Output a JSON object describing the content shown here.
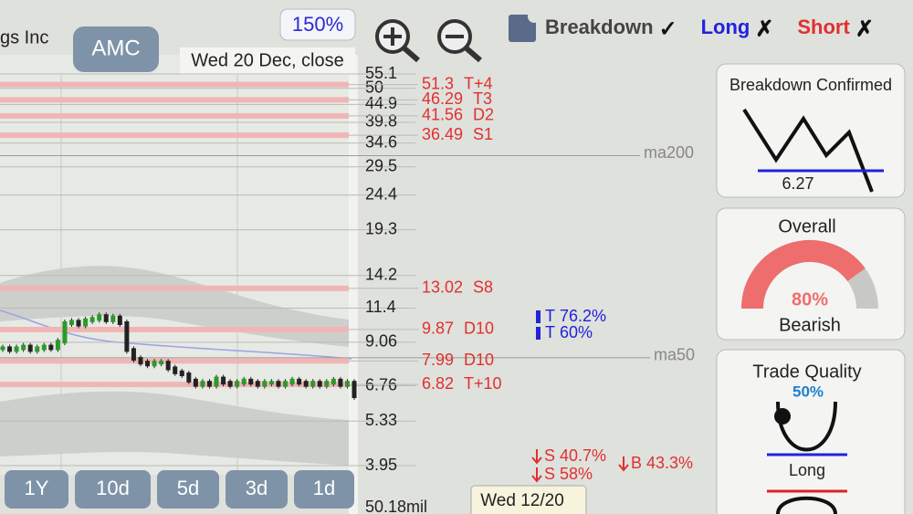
{
  "header": {
    "company": "gs Inc",
    "ticker": "AMC",
    "zoom": "150%",
    "date": "Wed 20 Dec, close"
  },
  "toggles": [
    {
      "label": "Breakdown",
      "state": "✓"
    },
    {
      "label": "Long",
      "state": "✗"
    },
    {
      "label": "Short",
      "state": "✗"
    }
  ],
  "price_axis": {
    "scale": "log",
    "ticks": [
      55.1,
      50,
      44.9,
      39.8,
      34.6,
      29.5,
      24.4,
      19.3,
      14.2,
      11.4,
      9.06,
      6.76,
      5.33,
      3.95
    ],
    "volume_label": "50.18mil"
  },
  "levels": [
    {
      "value": 51.3,
      "tag": "T+4"
    },
    {
      "value": 46.29,
      "tag": "T3"
    },
    {
      "value": 41.56,
      "tag": "D2"
    },
    {
      "value": 36.49,
      "tag": "S1"
    },
    {
      "value": 13.02,
      "tag": "S8"
    },
    {
      "value": 9.87,
      "tag": "D10"
    },
    {
      "value": 7.99,
      "tag": "D10"
    },
    {
      "value": 6.82,
      "tag": "T+10"
    }
  ],
  "moving_averages": [
    {
      "label": "ma200",
      "value": 31.8
    },
    {
      "label": "ma50",
      "value": 8.16
    }
  ],
  "candles": [
    8.7,
    8.6,
    8.7,
    8.8,
    8.6,
    8.7,
    8.8,
    8.7,
    9.1,
    10.3,
    10.4,
    10.2,
    10.5,
    10.6,
    10.8,
    10.5,
    10.7,
    10.3,
    8.6,
    8.1,
    7.9,
    7.8,
    7.9,
    7.9,
    7.6,
    7.4,
    7.3,
    7.0,
    6.8,
    6.9,
    6.8,
    7.1,
    6.9,
    6.8,
    6.9,
    7.0,
    6.9,
    6.8,
    6.9,
    6.9,
    6.8,
    6.9,
    7.0,
    6.9,
    6.8,
    6.9,
    6.8,
    6.9,
    7.0,
    6.8,
    6.9,
    6.3
  ],
  "targets": [
    {
      "label": "T",
      "prob": "76.2%"
    },
    {
      "label": "T",
      "prob": "60%"
    }
  ],
  "signals": [
    {
      "label": "S",
      "prob": "40.7%"
    },
    {
      "label": "S",
      "prob": "58%"
    },
    {
      "label": "B",
      "prob": "43.3%"
    }
  ],
  "panels": {
    "breakdown": {
      "title": "Breakdown Confirmed",
      "value": "6.27"
    },
    "overall": {
      "title": "Overall",
      "score": {
        "value": 80,
        "label": "80%"
      },
      "verdict": "Bearish"
    },
    "quality": {
      "title": "Trade Quality",
      "score": {
        "value": 50,
        "label": "50%"
      },
      "side": "Long"
    }
  },
  "periods": [
    "1Y",
    "10d",
    "5d",
    "3d",
    "1d"
  ],
  "cursor_date": "Wed 12/20"
}
